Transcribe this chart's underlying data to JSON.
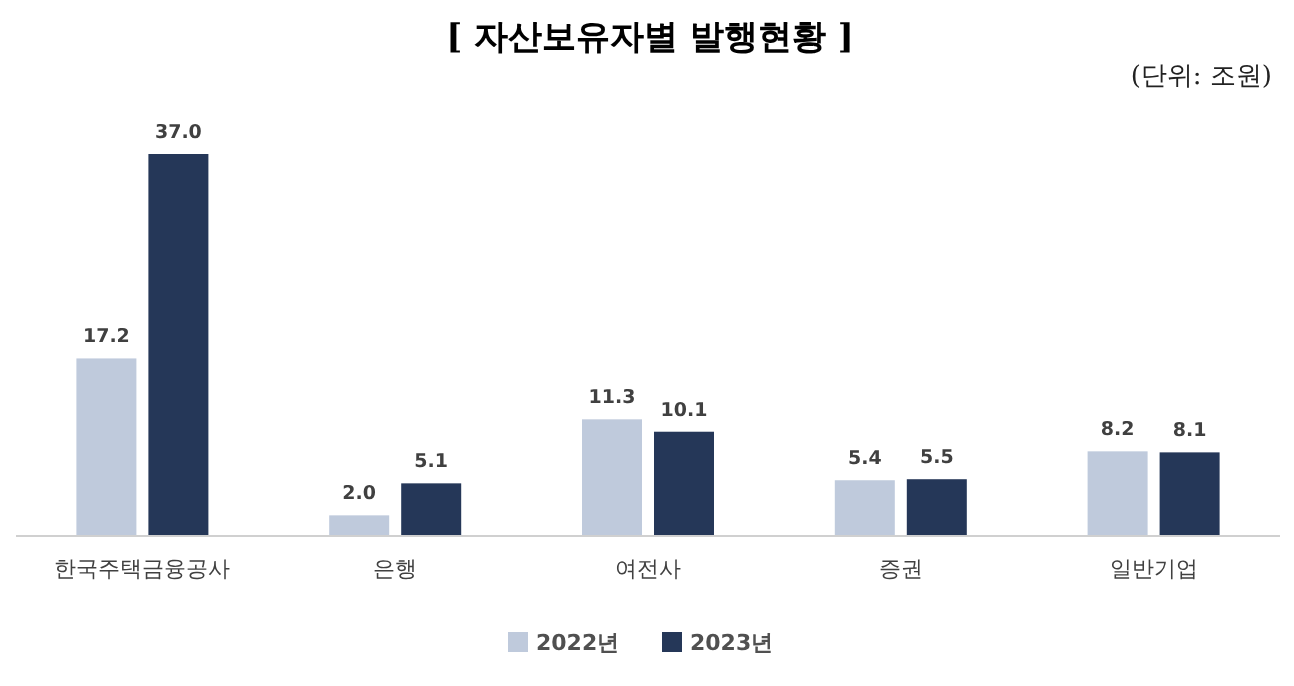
{
  "chart_data": {
    "type": "bar",
    "title": "[ 자산보유자별 발행현황 ]",
    "annotations": [
      "(단위: 조원)"
    ],
    "categories": [
      "한국주택금융공사",
      "은행",
      "여전사",
      "증권",
      "일반기업"
    ],
    "series": [
      {
        "name": "2022년",
        "color": "#bfcadc",
        "values": [
          17.2,
          2.0,
          11.3,
          5.4,
          8.2
        ],
        "value_labels": [
          "17.2",
          "2.0",
          "11.3",
          "5.4",
          "8.2"
        ]
      },
      {
        "name": "2023년",
        "color": "#253758",
        "values": [
          37.0,
          5.1,
          10.1,
          5.5,
          8.1
        ],
        "value_labels": [
          "37.0",
          "5.1",
          "10.1",
          "5.5",
          "8.1"
        ]
      }
    ],
    "legend": "bottom"
  }
}
